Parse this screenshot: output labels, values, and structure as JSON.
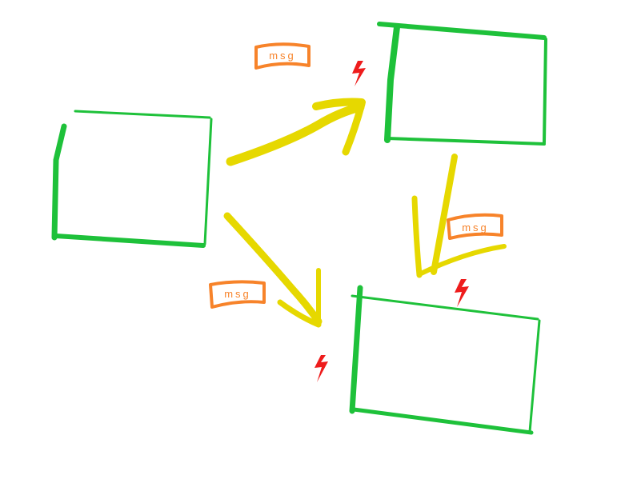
{
  "colors": {
    "background": "#ffffff",
    "box_stroke": "#1ec13a",
    "arrow": "#e6d800",
    "message_tag": "#f7832a",
    "lightning": "#ee1c1c"
  },
  "message_label": "msg",
  "nodes": [
    {
      "id": "node-left",
      "label": ""
    },
    {
      "id": "node-top-right",
      "label": ""
    },
    {
      "id": "node-bottom-right",
      "label": ""
    }
  ],
  "edges": [
    {
      "from": "node-left",
      "to": "node-top-right",
      "message": "msg",
      "icon": "lightning-icon"
    },
    {
      "from": "node-left",
      "to": "node-bottom-right",
      "message": "msg",
      "icon": "lightning-icon"
    },
    {
      "from": "node-top-right",
      "to": "node-bottom-right",
      "message": "msg",
      "icon": "lightning-icon"
    }
  ]
}
